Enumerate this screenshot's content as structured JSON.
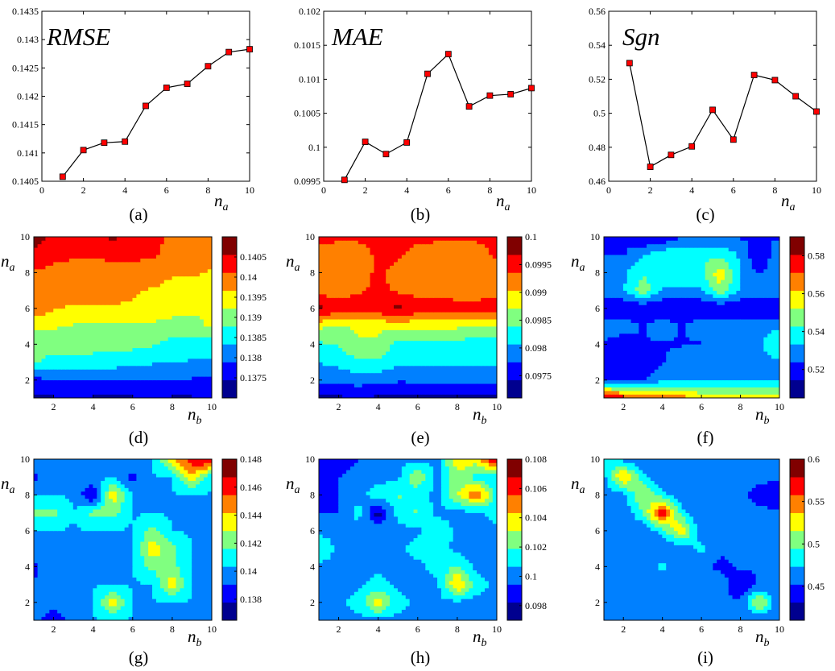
{
  "colors": {
    "line": "#000000",
    "marker": "#ff0000",
    "jet": [
      "#00008f",
      "#0000ff",
      "#0080ff",
      "#00ffff",
      "#80ff80",
      "#ffff00",
      "#ff8000",
      "#ff0000",
      "#800000"
    ]
  },
  "chart_data": [
    {
      "id": "a",
      "type": "line",
      "caption": "(a)",
      "title": "RMSE",
      "xlabel": {
        "var": "n",
        "sub": "a"
      },
      "xlim": [
        0,
        10
      ],
      "ylim": [
        0.1405,
        0.1435
      ],
      "xticks": [
        0,
        2,
        4,
        6,
        8,
        10
      ],
      "yticks": [
        0.1405,
        0.141,
        0.1415,
        0.142,
        0.1425,
        0.143,
        0.1435
      ],
      "yticklabels": [
        "0.1405",
        "0.141",
        "0.1415",
        "0.142",
        "0.1425",
        "0.143",
        "0.1435"
      ],
      "x": [
        1,
        2,
        3,
        4,
        5,
        6,
        7,
        8,
        9,
        10
      ],
      "y": [
        0.14058,
        0.14105,
        0.14118,
        0.1412,
        0.14183,
        0.14215,
        0.14222,
        0.14253,
        0.14278,
        0.14283
      ]
    },
    {
      "id": "b",
      "type": "line",
      "caption": "(b)",
      "title": "MAE",
      "xlabel": {
        "var": "n",
        "sub": "a"
      },
      "xlim": [
        0,
        10
      ],
      "ylim": [
        0.0995,
        0.102
      ],
      "xticks": [
        0,
        2,
        4,
        6,
        8,
        10
      ],
      "yticks": [
        0.0995,
        0.1,
        0.1005,
        0.101,
        0.1015,
        0.102
      ],
      "yticklabels": [
        "0.0995",
        "0.1",
        "0.1005",
        "0.101",
        "0.1015",
        "0.102"
      ],
      "x": [
        1,
        2,
        3,
        4,
        5,
        6,
        7,
        8,
        9,
        10
      ],
      "y": [
        0.09952,
        0.10008,
        0.0999,
        0.10007,
        0.10108,
        0.10137,
        0.1006,
        0.10076,
        0.10078,
        0.10087
      ]
    },
    {
      "id": "c",
      "type": "line",
      "caption": "(c)",
      "title": "Sgn",
      "xlabel": {
        "var": "n",
        "sub": "a"
      },
      "xlim": [
        0,
        10
      ],
      "ylim": [
        0.46,
        0.56
      ],
      "xticks": [
        0,
        2,
        4,
        6,
        8,
        10
      ],
      "yticks": [
        0.46,
        0.48,
        0.5,
        0.52,
        0.54,
        0.56
      ],
      "yticklabels": [
        "0.46",
        "0.48",
        "0.5",
        "0.52",
        "0.54",
        "0.56"
      ],
      "x": [
        1,
        2,
        3,
        4,
        5,
        6,
        7,
        8,
        9,
        10
      ],
      "y": [
        0.5295,
        0.4685,
        0.4755,
        0.4805,
        0.502,
        0.4845,
        0.5225,
        0.5195,
        0.51,
        0.501
      ]
    },
    {
      "id": "d",
      "type": "heatmap",
      "caption": "(d)",
      "xlabel": {
        "var": "n",
        "sub": "b"
      },
      "ylabel": {
        "var": "n",
        "sub": "a"
      },
      "xlim": [
        1,
        10
      ],
      "ylim": [
        1,
        10
      ],
      "xticks": [
        2,
        4,
        6,
        8,
        10
      ],
      "yticks": [
        2,
        4,
        6,
        8,
        10
      ],
      "colorbar": {
        "min": 0.137,
        "max": 0.141,
        "ticks": [
          0.1375,
          0.138,
          0.1385,
          0.139,
          0.1395,
          0.14,
          0.1405
        ],
        "ticklabels": [
          "0.1375",
          "0.138",
          "0.1385",
          "0.139",
          "0.1395",
          "0.14",
          "0.1405"
        ]
      },
      "z": [
        [
          0.1371,
          0.1372,
          0.1372,
          0.1372,
          0.1371,
          0.1372,
          0.1373,
          0.1372,
          0.1372,
          0.1373
        ],
        [
          0.1376,
          0.1377,
          0.1378,
          0.1377,
          0.1377,
          0.1378,
          0.1378,
          0.1377,
          0.1377,
          0.1376
        ],
        [
          0.1388,
          0.1386,
          0.1386,
          0.1386,
          0.1385,
          0.1384,
          0.1383,
          0.1383,
          0.1382,
          0.1382
        ],
        [
          0.139,
          0.1389,
          0.139,
          0.1389,
          0.1389,
          0.1389,
          0.1388,
          0.1386,
          0.1384,
          0.1384
        ],
        [
          0.1393,
          0.1393,
          0.1392,
          0.1392,
          0.1392,
          0.1392,
          0.1391,
          0.139,
          0.1391,
          0.1393
        ],
        [
          0.1402,
          0.1398,
          0.1397,
          0.1397,
          0.1397,
          0.1397,
          0.1397,
          0.1395,
          0.1393,
          0.1394
        ],
        [
          0.1401,
          0.14,
          0.1399,
          0.14,
          0.1399,
          0.1398,
          0.1397,
          0.1396,
          0.1396,
          0.1396
        ],
        [
          0.1402,
          0.1401,
          0.1401,
          0.14,
          0.1402,
          0.14,
          0.14,
          0.1398,
          0.1398,
          0.1397
        ],
        [
          0.1406,
          0.1404,
          0.1403,
          0.1403,
          0.1403,
          0.1404,
          0.1403,
          0.1401,
          0.1401,
          0.1401
        ],
        [
          0.141,
          0.1406,
          0.1404,
          0.1405,
          0.1409,
          0.1405,
          0.1404,
          0.1402,
          0.1401,
          0.1401
        ]
      ]
    },
    {
      "id": "e",
      "type": "heatmap",
      "caption": "(e)",
      "xlabel": {
        "var": "n",
        "sub": "b"
      },
      "ylabel": {
        "var": "n",
        "sub": "a"
      },
      "xlim": [
        1,
        10
      ],
      "ylim": [
        1,
        10
      ],
      "xticks": [
        2,
        4,
        6,
        8,
        10
      ],
      "yticks": [
        2,
        4,
        6,
        8,
        10
      ],
      "colorbar": {
        "min": 0.0971,
        "max": 0.1,
        "ticks": [
          0.0975,
          0.098,
          0.0985,
          0.099,
          0.0995,
          0.1
        ],
        "ticklabels": [
          "0.0975",
          "0.098",
          "0.0985",
          "0.099",
          "0.0995",
          "0.1"
        ]
      },
      "z": [
        [
          0.0972,
          0.0972,
          0.0973,
          0.0972,
          0.0971,
          0.0972,
          0.0972,
          0.0972,
          0.0972,
          0.0972
        ],
        [
          0.0978,
          0.0978,
          0.0978,
          0.0978,
          0.0977,
          0.0977,
          0.0977,
          0.0977,
          0.0977,
          0.0977
        ],
        [
          0.098,
          0.0981,
          0.0983,
          0.0983,
          0.0981,
          0.0981,
          0.0981,
          0.0981,
          0.0981,
          0.0981
        ],
        [
          0.0983,
          0.0984,
          0.0987,
          0.0987,
          0.0982,
          0.0982,
          0.0982,
          0.0982,
          0.0982,
          0.0982
        ],
        [
          0.0988,
          0.0987,
          0.0988,
          0.0988,
          0.0988,
          0.0988,
          0.0988,
          0.0988,
          0.0987,
          0.0987
        ],
        [
          0.0999,
          0.0997,
          0.0997,
          0.0997,
          0.0999,
          0.0997,
          0.0997,
          0.0996,
          0.0996,
          0.0997
        ],
        [
          0.0993,
          0.0993,
          0.0994,
          0.0996,
          0.0994,
          0.0993,
          0.0993,
          0.0993,
          0.0993,
          0.0993
        ],
        [
          0.0992,
          0.0991,
          0.0991,
          0.0996,
          0.0992,
          0.0991,
          0.0991,
          0.0991,
          0.0991,
          0.0991
        ],
        [
          0.0992,
          0.0991,
          0.0991,
          0.0996,
          0.0996,
          0.0992,
          0.0991,
          0.0991,
          0.0991,
          0.0996
        ],
        [
          0.0996,
          0.0996,
          0.0996,
          0.0996,
          0.0997,
          0.0996,
          0.0996,
          0.0996,
          0.0996,
          0.0997
        ]
      ]
    },
    {
      "id": "f",
      "type": "heatmap",
      "caption": "(f)",
      "xlabel": {
        "var": "n",
        "sub": "b"
      },
      "ylabel": {
        "var": "n",
        "sub": "a"
      },
      "xlim": [
        1,
        10
      ],
      "ylim": [
        1,
        10
      ],
      "xticks": [
        2,
        4,
        6,
        8,
        10
      ],
      "yticks": [
        2,
        4,
        6,
        8,
        10
      ],
      "colorbar": {
        "min": 0.505,
        "max": 0.59,
        "ticks": [
          0.52,
          0.54,
          0.56,
          0.58
        ],
        "ticklabels": [
          "0.52",
          "0.54",
          "0.56",
          "0.58"
        ]
      },
      "z": [
        [
          0.59,
          0.58,
          0.57,
          0.57,
          0.57,
          0.56,
          0.56,
          0.56,
          0.56,
          0.56
        ],
        [
          0.52,
          0.52,
          0.52,
          0.53,
          0.53,
          0.53,
          0.53,
          0.53,
          0.53,
          0.53
        ],
        [
          0.52,
          0.52,
          0.51,
          0.52,
          0.53,
          0.53,
          0.53,
          0.53,
          0.53,
          0.53
        ],
        [
          0.52,
          0.51,
          0.52,
          0.52,
          0.52,
          0.52,
          0.52,
          0.53,
          0.53,
          0.54
        ],
        [
          0.53,
          0.53,
          0.52,
          0.53,
          0.52,
          0.53,
          0.53,
          0.53,
          0.53,
          0.53
        ],
        [
          0.51,
          0.51,
          0.51,
          0.51,
          0.51,
          0.51,
          0.51,
          0.51,
          0.51,
          0.51
        ],
        [
          0.53,
          0.53,
          0.55,
          0.53,
          0.53,
          0.53,
          0.55,
          0.53,
          0.53,
          0.53
        ],
        [
          0.53,
          0.53,
          0.54,
          0.54,
          0.54,
          0.54,
          0.56,
          0.53,
          0.52,
          0.53
        ],
        [
          0.52,
          0.52,
          0.53,
          0.54,
          0.54,
          0.54,
          0.54,
          0.53,
          0.51,
          0.53
        ],
        [
          0.52,
          0.52,
          0.51,
          0.51,
          0.52,
          0.52,
          0.52,
          0.52,
          0.52,
          0.52
        ]
      ]
    },
    {
      "id": "g",
      "type": "heatmap",
      "caption": "(g)",
      "xlabel": {
        "var": "n",
        "sub": "b"
      },
      "ylabel": {
        "var": "n",
        "sub": "a"
      },
      "xlim": [
        1,
        10
      ],
      "ylim": [
        1,
        10
      ],
      "xticks": [
        2,
        4,
        6,
        8,
        10
      ],
      "yticks": [
        2,
        4,
        6,
        8,
        10
      ],
      "colorbar": {
        "min": 0.1365,
        "max": 0.148,
        "ticks": [
          0.138,
          0.14,
          0.142,
          0.144,
          0.146,
          0.148
        ],
        "ticklabels": [
          "0.138",
          "0.14",
          "0.142",
          "0.144",
          "0.146",
          "0.148"
        ]
      },
      "z": [
        [
          0.14,
          0.137,
          0.14,
          0.14,
          0.14,
          0.14,
          0.14,
          0.14,
          0.14,
          0.14
        ],
        [
          0.14,
          0.14,
          0.14,
          0.14,
          0.144,
          0.14,
          0.14,
          0.14,
          0.14,
          0.14
        ],
        [
          0.139,
          0.14,
          0.14,
          0.14,
          0.14,
          0.14,
          0.14,
          0.144,
          0.14,
          0.14
        ],
        [
          0.138,
          0.14,
          0.14,
          0.14,
          0.14,
          0.14,
          0.142,
          0.142,
          0.14,
          0.14
        ],
        [
          0.14,
          0.14,
          0.14,
          0.14,
          0.14,
          0.14,
          0.144,
          0.142,
          0.14,
          0.14
        ],
        [
          0.14,
          0.14,
          0.14,
          0.14,
          0.14,
          0.14,
          0.142,
          0.14,
          0.14,
          0.14
        ],
        [
          0.142,
          0.142,
          0.14,
          0.142,
          0.142,
          0.14,
          0.14,
          0.14,
          0.14,
          0.14
        ],
        [
          0.14,
          0.14,
          0.14,
          0.137,
          0.144,
          0.14,
          0.14,
          0.14,
          0.14,
          0.14
        ],
        [
          0.138,
          0.14,
          0.14,
          0.14,
          0.14,
          0.138,
          0.14,
          0.14,
          0.144,
          0.14
        ],
        [
          0.14,
          0.14,
          0.14,
          0.14,
          0.14,
          0.14,
          0.14,
          0.144,
          0.147,
          0.148
        ]
      ]
    },
    {
      "id": "h",
      "type": "heatmap",
      "caption": "(h)",
      "xlabel": {
        "var": "n",
        "sub": "b"
      },
      "ylabel": {
        "var": "n",
        "sub": "a"
      },
      "xlim": [
        1,
        10
      ],
      "ylim": [
        1,
        10
      ],
      "xticks": [
        2,
        4,
        6,
        8,
        10
      ],
      "yticks": [
        2,
        4,
        6,
        8,
        10
      ],
      "colorbar": {
        "min": 0.097,
        "max": 0.108,
        "ticks": [
          0.098,
          0.1,
          0.102,
          0.104,
          0.106,
          0.108
        ],
        "ticklabels": [
          "0.098",
          "0.1",
          "0.102",
          "0.104",
          "0.106",
          "0.108"
        ]
      },
      "z": [
        [
          0.1,
          0.1,
          0.1,
          0.1,
          0.1,
          0.1,
          0.1,
          0.1,
          0.1,
          0.1
        ],
        [
          0.1,
          0.1,
          0.101,
          0.104,
          0.101,
          0.1,
          0.1,
          0.1,
          0.1,
          0.1
        ],
        [
          0.1,
          0.1,
          0.1,
          0.101,
          0.1,
          0.1,
          0.1,
          0.105,
          0.101,
          0.1
        ],
        [
          0.1,
          0.1,
          0.1,
          0.1,
          0.1,
          0.1,
          0.101,
          0.102,
          0.1,
          0.1
        ],
        [
          0.102,
          0.1,
          0.099,
          0.099,
          0.1,
          0.101,
          0.101,
          0.1,
          0.099,
          0.1
        ],
        [
          0.1,
          0.1,
          0.1,
          0.1,
          0.1,
          0.1,
          0.102,
          0.1,
          0.1,
          0.1
        ],
        [
          0.099,
          0.099,
          0.101,
          0.097,
          0.101,
          0.102,
          0.1,
          0.1,
          0.1,
          0.101
        ],
        [
          0.099,
          0.099,
          0.1,
          0.101,
          0.102,
          0.101,
          0.1,
          0.103,
          0.106,
          0.101
        ],
        [
          0.098,
          0.099,
          0.1,
          0.1,
          0.1,
          0.103,
          0.1,
          0.103,
          0.101,
          0.101
        ],
        [
          0.099,
          0.098,
          0.099,
          0.099,
          0.1,
          0.1,
          0.1,
          0.104,
          0.104,
          0.108
        ]
      ]
    },
    {
      "id": "i",
      "type": "heatmap",
      "caption": "(i)",
      "xlabel": {
        "var": "n",
        "sub": "b"
      },
      "ylabel": {
        "var": "n",
        "sub": "a"
      },
      "xlim": [
        1,
        10
      ],
      "ylim": [
        1,
        10
      ],
      "xticks": [
        2,
        4,
        6,
        8,
        10
      ],
      "yticks": [
        2,
        4,
        6,
        8,
        10
      ],
      "colorbar": {
        "min": 0.41,
        "max": 0.6,
        "ticks": [
          0.45,
          0.5,
          0.55,
          0.6
        ],
        "ticklabels": [
          "0.45",
          "0.5",
          "0.55",
          "0.6"
        ]
      },
      "z": [
        [
          0.45,
          0.45,
          0.45,
          0.45,
          0.45,
          0.45,
          0.45,
          0.45,
          0.45,
          0.45
        ],
        [
          0.45,
          0.45,
          0.45,
          0.45,
          0.45,
          0.45,
          0.45,
          0.45,
          0.52,
          0.45
        ],
        [
          0.45,
          0.45,
          0.45,
          0.45,
          0.45,
          0.45,
          0.46,
          0.42,
          0.45,
          0.45
        ],
        [
          0.45,
          0.45,
          0.45,
          0.48,
          0.45,
          0.45,
          0.44,
          0.45,
          0.45,
          0.45
        ],
        [
          0.45,
          0.45,
          0.45,
          0.45,
          0.45,
          0.48,
          0.45,
          0.45,
          0.45,
          0.45
        ],
        [
          0.45,
          0.45,
          0.45,
          0.48,
          0.54,
          0.45,
          0.45,
          0.45,
          0.45,
          0.45
        ],
        [
          0.45,
          0.45,
          0.49,
          0.59,
          0.48,
          0.45,
          0.45,
          0.45,
          0.45,
          0.45
        ],
        [
          0.45,
          0.46,
          0.52,
          0.48,
          0.45,
          0.45,
          0.47,
          0.45,
          0.44,
          0.43
        ],
        [
          0.46,
          0.55,
          0.48,
          0.45,
          0.45,
          0.45,
          0.47,
          0.45,
          0.45,
          0.45
        ],
        [
          0.48,
          0.46,
          0.45,
          0.45,
          0.47,
          0.45,
          0.45,
          0.47,
          0.45,
          0.45
        ]
      ]
    }
  ]
}
